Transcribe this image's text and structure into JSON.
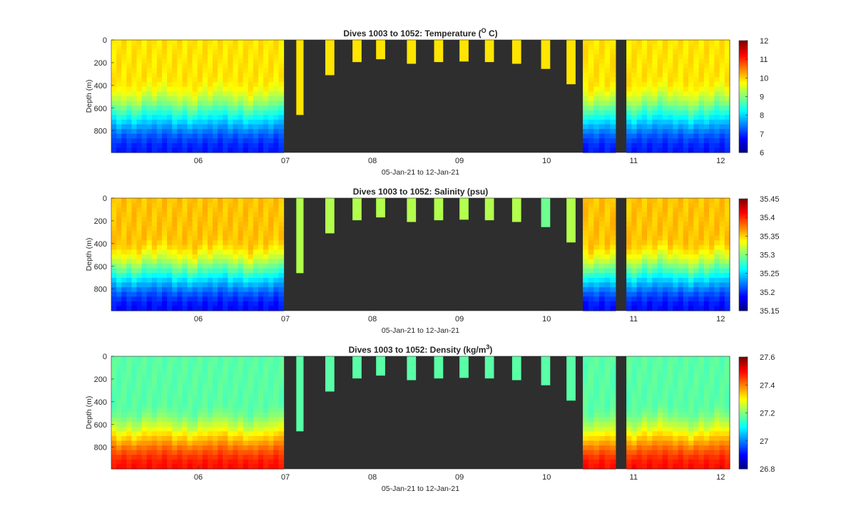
{
  "chart_data": [
    {
      "type": "heatmap",
      "title_main": "Dives 1003 to 1052: Temperature (",
      "title_sup": "O",
      "title_end": " C)",
      "xlabel": "05-Jan-21 to 12-Jan-21",
      "ylabel": "Depth (m)",
      "xlim": [
        "2021-01-05 12:00",
        "2021-01-12 14:30"
      ],
      "ylim": [
        0,
        990
      ],
      "yticks": [
        0,
        200,
        400,
        600,
        800
      ],
      "xticks": [
        "06",
        "07",
        "08",
        "09",
        "10",
        "11",
        "12"
      ],
      "clim": [
        6,
        12
      ],
      "cticks": [
        "6",
        "7",
        "8",
        "9",
        "10",
        "11",
        "12"
      ],
      "colormap": "jet",
      "field": {
        "surface": 9.9,
        "thermocline_top_m": 330,
        "deep": 6.9,
        "sparse_dive_value": 9.9
      }
    },
    {
      "type": "heatmap",
      "title_main": "Dives 1003 to 1052: Salinity (psu)",
      "title_sup": "",
      "title_end": "",
      "xlabel": "05-Jan-21 to 12-Jan-21",
      "ylabel": "Depth (m)",
      "xlim": [
        "2021-01-05 12:00",
        "2021-01-12 14:30"
      ],
      "ylim": [
        0,
        990
      ],
      "yticks": [
        0,
        200,
        400,
        600,
        800
      ],
      "xticks": [
        "06",
        "07",
        "08",
        "09",
        "10",
        "11",
        "12"
      ],
      "clim": [
        35.15,
        35.45
      ],
      "cticks": [
        "35.15",
        "35.2",
        "35.25",
        "35.3",
        "35.35",
        "35.4",
        "35.45"
      ],
      "colormap": "jet",
      "field": {
        "surface": 35.355,
        "thermocline_top_m": 350,
        "deep": 35.19,
        "sparse_dive_value": 35.315
      }
    },
    {
      "type": "heatmap",
      "title_main": "Dives 1003 to 1052: Density (kg/m",
      "title_sup": "3",
      "title_end": ")",
      "xlabel": "05-Jan-21 to 12-Jan-21",
      "ylabel": "Depth (m)",
      "xlim": [
        "2021-01-05 12:00",
        "2021-01-12 14:30"
      ],
      "ylim": [
        0,
        990
      ],
      "yticks": [
        0,
        200,
        400,
        600,
        800
      ],
      "xticks": [
        "06",
        "07",
        "08",
        "09",
        "10",
        "11",
        "12"
      ],
      "clim": [
        26.8,
        27.6
      ],
      "cticks": [
        "26.8",
        "27",
        "27.2",
        "27.4",
        "27.6"
      ],
      "colormap": "jet",
      "field": {
        "surface": 27.17,
        "thermocline_top_m": 420,
        "deep": 27.49,
        "sparse_dive_value": 27.17
      }
    }
  ],
  "dives": {
    "full_coverage_spans": [
      [
        "2021-01-05 12:00",
        "2021-01-07 11:30"
      ],
      [
        "2021-01-10 22:00",
        "2021-01-11 07:00"
      ],
      [
        "2021-01-11 10:00",
        "2021-01-12 14:30"
      ]
    ],
    "shallow_profiles": [
      {
        "start": "2021-01-07 15:00",
        "end": "2021-01-07 17:00",
        "max_depth_m": 660
      },
      {
        "start": "2021-01-07 23:00",
        "end": "2021-01-08 01:30",
        "max_depth_m": 310
      },
      {
        "start": "2021-01-08 06:30",
        "end": "2021-01-08 09:00",
        "max_depth_m": 195
      },
      {
        "start": "2021-01-08 13:00",
        "end": "2021-01-08 15:30",
        "max_depth_m": 170
      },
      {
        "start": "2021-01-08 21:30",
        "end": "2021-01-09 00:00",
        "max_depth_m": 210
      },
      {
        "start": "2021-01-09 05:00",
        "end": "2021-01-09 07:30",
        "max_depth_m": 195
      },
      {
        "start": "2021-01-09 12:00",
        "end": "2021-01-09 14:30",
        "max_depth_m": 190
      },
      {
        "start": "2021-01-09 19:00",
        "end": "2021-01-09 21:30",
        "max_depth_m": 195
      },
      {
        "start": "2021-01-10 02:30",
        "end": "2021-01-10 05:00",
        "max_depth_m": 210
      },
      {
        "start": "2021-01-10 10:30",
        "end": "2021-01-10 13:00",
        "max_depth_m": 255
      },
      {
        "start": "2021-01-10 17:30",
        "end": "2021-01-10 20:00",
        "max_depth_m": 390
      }
    ],
    "no_data_color": "#2e2e2e"
  }
}
